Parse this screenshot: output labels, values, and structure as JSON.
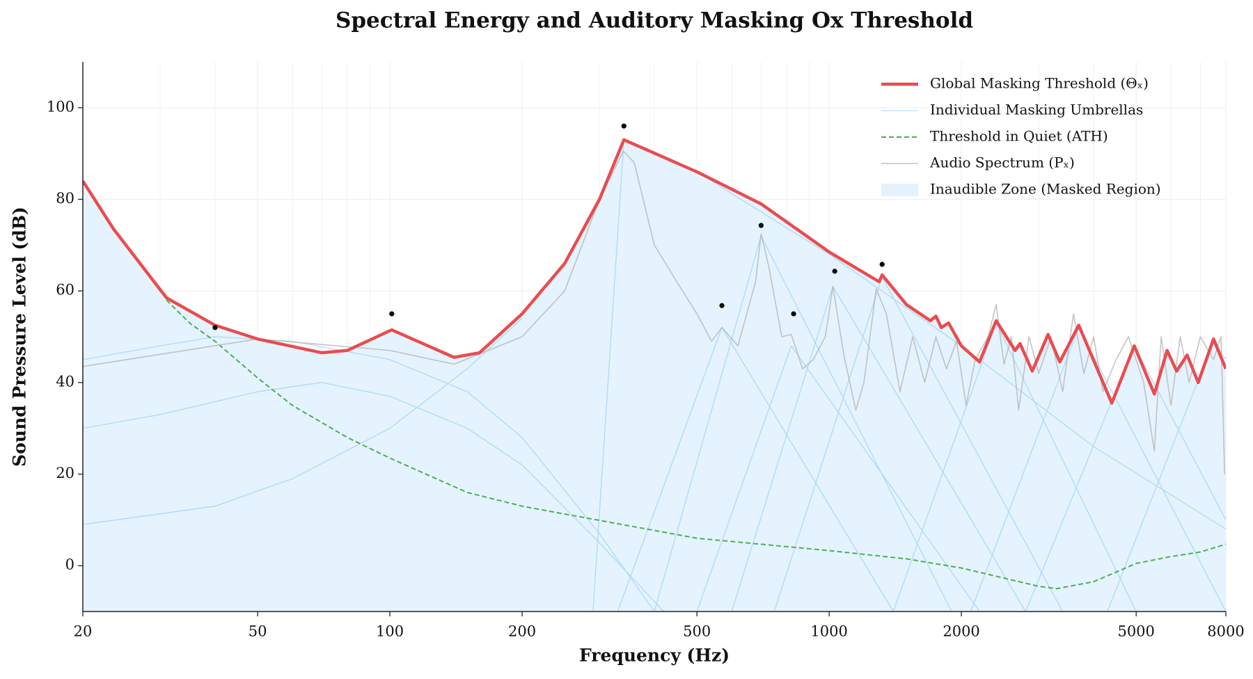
{
  "chart_data": {
    "type": "line",
    "title": "Spectral Energy and Auditory Masking Ox Threshold",
    "x_label": "Frequency (Hz)",
    "y_label": "Sound Pressure Level (dB)",
    "xscale": "log",
    "xlim": [
      20,
      8000
    ],
    "ylim": [
      -10,
      110
    ],
    "xticks": [
      20,
      50,
      100,
      200,
      500,
      1000,
      2000,
      5000,
      8000
    ],
    "yticks": [
      0,
      20,
      40,
      60,
      80,
      100
    ],
    "grid": true,
    "legend": "upper right",
    "series": [
      {
        "name": "Global Masking Threshold (Θₓ)",
        "color": "#e94c4f",
        "linewidth": 4.5,
        "linestyle": "solid",
        "x": [
          20,
          23.5,
          31,
          40,
          50,
          70,
          80,
          101,
          140,
          160,
          200,
          250,
          300,
          341,
          500,
          700,
          1000,
          1300,
          1320,
          1500,
          1700,
          1750,
          1800,
          1870,
          2000,
          2200,
          2400,
          2650,
          2720,
          2900,
          3150,
          3350,
          3700,
          4400,
          4950,
          5500,
          5880,
          6180,
          6530,
          6920,
          7500,
          8000
        ],
        "values": [
          84,
          73.5,
          58.5,
          52.5,
          49.5,
          46.5,
          47,
          51.5,
          45.5,
          46.5,
          55,
          66,
          80,
          93,
          86,
          79,
          68.5,
          62,
          63.5,
          57,
          53.5,
          54.5,
          52,
          53,
          48,
          44.5,
          53.5,
          47,
          48.5,
          42.5,
          50.5,
          44.5,
          52.5,
          35.5,
          48,
          37.5,
          47,
          42.5,
          46,
          40,
          49.5,
          43
        ]
      },
      {
        "name": "Individual Masking Umbrellas",
        "color": "#90caf9",
        "linewidth": 1.3,
        "linestyle": "solid",
        "opacity": 0.65,
        "x": [
          20,
          30,
          40,
          60,
          100,
          150,
          200,
          300,
          400,
          null,
          20,
          30,
          50,
          70,
          100,
          150,
          200,
          300,
          420,
          null,
          20,
          40,
          60,
          100,
          150,
          200,
          null,
          290,
          341,
          500,
          1000,
          2000,
          4000,
          8000,
          null,
          330,
          570,
          1400,
          null,
          400,
          700,
          1900,
          null,
          500,
          820,
          2200,
          null,
          600,
          1020,
          2800,
          null,
          750,
          1320,
          3400,
          null,
          1400,
          2400,
          5000,
          null,
          2100,
          3700,
          8000,
          null,
          2800,
          4950,
          8000,
          null,
          4300,
          7500,
          8000
        ],
        "values": [
          45,
          48,
          50,
          49,
          45,
          38,
          28,
          7,
          -10,
          null,
          30,
          33,
          38,
          40,
          37,
          30,
          22,
          5,
          -10,
          null,
          9,
          13,
          19,
          30,
          43,
          54,
          null,
          -10,
          93,
          86,
          68,
          48,
          26,
          8,
          null,
          -10,
          52,
          -10,
          null,
          -10,
          72,
          -10,
          null,
          -10,
          48,
          -10,
          null,
          -10,
          61,
          -10,
          null,
          -10,
          63,
          -10,
          null,
          -10,
          53,
          -10,
          null,
          -10,
          52,
          -10,
          null,
          -10,
          48,
          10,
          null,
          -10,
          49,
          45
        ]
      },
      {
        "name": "Threshold in Quiet (ATH)",
        "color": "#4caf50",
        "linewidth": 2,
        "linestyle": "dashed",
        "x": [
          31,
          35,
          40,
          50,
          60,
          80,
          100,
          150,
          200,
          500,
          1000,
          1500,
          2000,
          3000,
          3300,
          4000,
          5000,
          6000,
          7000,
          8000
        ],
        "values": [
          58,
          53,
          49,
          41,
          35,
          28,
          23.5,
          16,
          13,
          6,
          3.3,
          1.5,
          -0.5,
          -4.5,
          -5,
          -3.5,
          0.5,
          2,
          3,
          4.7
        ]
      },
      {
        "name": "Audio Spectrum (Pₓ)",
        "color": "#b5b5b5",
        "linewidth": 1.6,
        "linestyle": "solid",
        "opacity": 0.8,
        "x": [
          20,
          50,
          100,
          140,
          200,
          250,
          300,
          340,
          360,
          400,
          450,
          500,
          540,
          570,
          620,
          680,
          700,
          730,
          780,
          820,
          870,
          920,
          980,
          1020,
          1080,
          1150,
          1200,
          1280,
          1350,
          1450,
          1550,
          1650,
          1750,
          1850,
          1950,
          2050,
          2150,
          2300,
          2400,
          2500,
          2600,
          2700,
          2850,
          3000,
          3200,
          3400,
          3600,
          3800,
          4000,
          4200,
          4500,
          4800,
          5200,
          5500,
          5700,
          6000,
          6300,
          6600,
          7000,
          7500,
          7800,
          7950
        ],
        "values": [
          43.5,
          49.5,
          47,
          44,
          50,
          60,
          80,
          90.5,
          88,
          70,
          62,
          55,
          49,
          52,
          48,
          62,
          72.5,
          65,
          50,
          50.5,
          43,
          45,
          50,
          61,
          46,
          34,
          40,
          60.5,
          55,
          38,
          50,
          40,
          50,
          43,
          49,
          35,
          45,
          50,
          57,
          44,
          50,
          34,
          50,
          42,
          50,
          38,
          55,
          42,
          50,
          38,
          45,
          50,
          40,
          25,
          50,
          35,
          50,
          40,
          50,
          45,
          50,
          20
        ]
      },
      {
        "name": "Inaudible Zone (Masked Region)",
        "color": "#e3f2fd",
        "fill": true,
        "x": [
          20,
          23.5,
          31,
          40,
          50,
          70,
          80,
          101,
          140,
          160,
          200,
          250,
          300,
          341,
          500,
          700,
          1000,
          1300,
          1320,
          1500,
          1700,
          1750,
          1800,
          1870,
          2000,
          2200,
          2400,
          2650,
          2720,
          2900,
          3150,
          3350,
          3700,
          4400,
          4950,
          5500,
          5880,
          6180,
          6530,
          6920,
          7500,
          8000
        ],
        "values": [
          84,
          73.5,
          58.5,
          52.5,
          49.5,
          46.5,
          47,
          51.5,
          45.5,
          46.5,
          55,
          66,
          80,
          93,
          86,
          79,
          68.5,
          62,
          63.5,
          57,
          53.5,
          54.5,
          52,
          53,
          48,
          44.5,
          53.5,
          47,
          48.5,
          42.5,
          50.5,
          44.5,
          52.5,
          35.5,
          48,
          37.5,
          47,
          42.5,
          46,
          40,
          49.5,
          43
        ]
      }
    ],
    "markers": {
      "color": "#000000",
      "x": [
        40,
        101,
        341,
        570,
        700,
        830,
        1030,
        1320
      ],
      "values": [
        52,
        55,
        96,
        56.8,
        74.3,
        55,
        64.3,
        65.8
      ]
    }
  }
}
